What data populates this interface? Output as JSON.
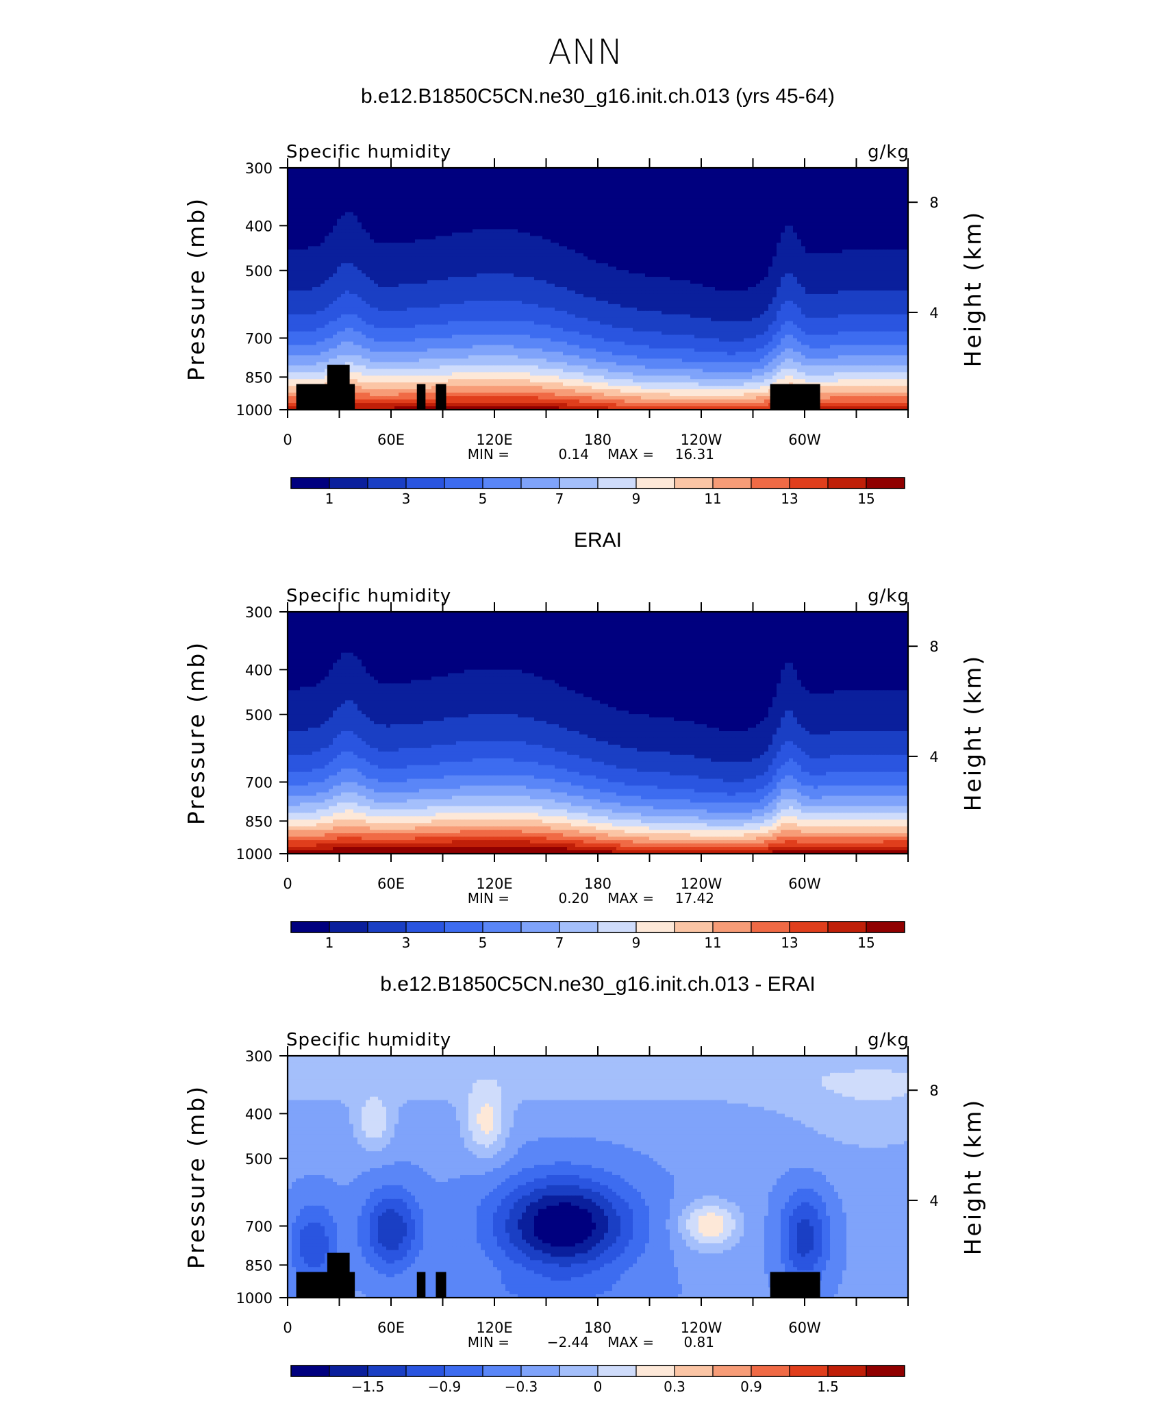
{
  "figure_title": "ANN",
  "colors": {
    "fill_palette": [
      "#00007f",
      "#0a1f9c",
      "#1a3fc4",
      "#2a55e0",
      "#3d6cf0",
      "#5a86f7",
      "#7fa3fa",
      "#a4bffb",
      "#cfdcfb",
      "#fde8d8",
      "#fbc5a5",
      "#f79c77",
      "#f06a45",
      "#e03e1c",
      "#c01f08",
      "#900000"
    ],
    "land_mask": "#000000"
  },
  "chart_data": [
    {
      "type": "heatmap",
      "title": "b.e12.B1850C5CN.ne30_g16.init.ch.013 (yrs 45-64)",
      "left_label": "Specific humidity",
      "right_label": "g/kg",
      "ylabel": "Pressure (mb)",
      "ylabel_right": "Height (km)",
      "x_ticks": [
        "0",
        "60E",
        "120E",
        "180",
        "120W",
        "60W"
      ],
      "y_ticks": [
        "300",
        "400",
        "500",
        "700",
        "850",
        "1000"
      ],
      "y_ticks_right": [
        "8",
        "4"
      ],
      "stats": {
        "min_label": "MIN =",
        "min": "0.14",
        "max_label": "MAX =",
        "max": "16.31"
      },
      "colorbar_labels": [
        "1",
        "3",
        "5",
        "7",
        "9",
        "11",
        "13",
        "15"
      ],
      "field": "absolute",
      "field_max": 16.31,
      "ocean_range_approx": [
        0.14,
        16.31
      ]
    },
    {
      "type": "heatmap",
      "title": "ERAI",
      "left_label": "Specific humidity",
      "right_label": "g/kg",
      "ylabel": "Pressure (mb)",
      "ylabel_right": "Height (km)",
      "x_ticks": [
        "0",
        "60E",
        "120E",
        "180",
        "120W",
        "60W"
      ],
      "y_ticks": [
        "300",
        "400",
        "500",
        "700",
        "850",
        "1000"
      ],
      "y_ticks_right": [
        "8",
        "4"
      ],
      "stats": {
        "min_label": "MIN =",
        "min": "0.20",
        "max_label": "MAX =",
        "max": "17.42"
      },
      "colorbar_labels": [
        "1",
        "3",
        "5",
        "7",
        "9",
        "11",
        "13",
        "15"
      ],
      "field": "absolute",
      "field_max": 17.42
    },
    {
      "type": "heatmap",
      "title": "b.e12.B1850C5CN.ne30_g16.init.ch.013 - ERAI",
      "left_label": "Specific humidity",
      "right_label": "g/kg",
      "ylabel": "Pressure (mb)",
      "ylabel_right": "Height (km)",
      "x_ticks": [
        "0",
        "60E",
        "120E",
        "180",
        "120W",
        "60W"
      ],
      "y_ticks": [
        "300",
        "400",
        "500",
        "700",
        "850",
        "1000"
      ],
      "y_ticks_right": [
        "8",
        "4"
      ],
      "stats": {
        "min_label": "MIN =",
        "min": "−2.44",
        "max_label": "MAX =",
        "max": "0.81"
      },
      "colorbar_labels": [
        "−1.5",
        "−0.9",
        "−0.3",
        "0",
        "0.3",
        "0.9",
        "1.5"
      ],
      "field": "difference",
      "range": [
        -2.44,
        0.81
      ]
    }
  ]
}
